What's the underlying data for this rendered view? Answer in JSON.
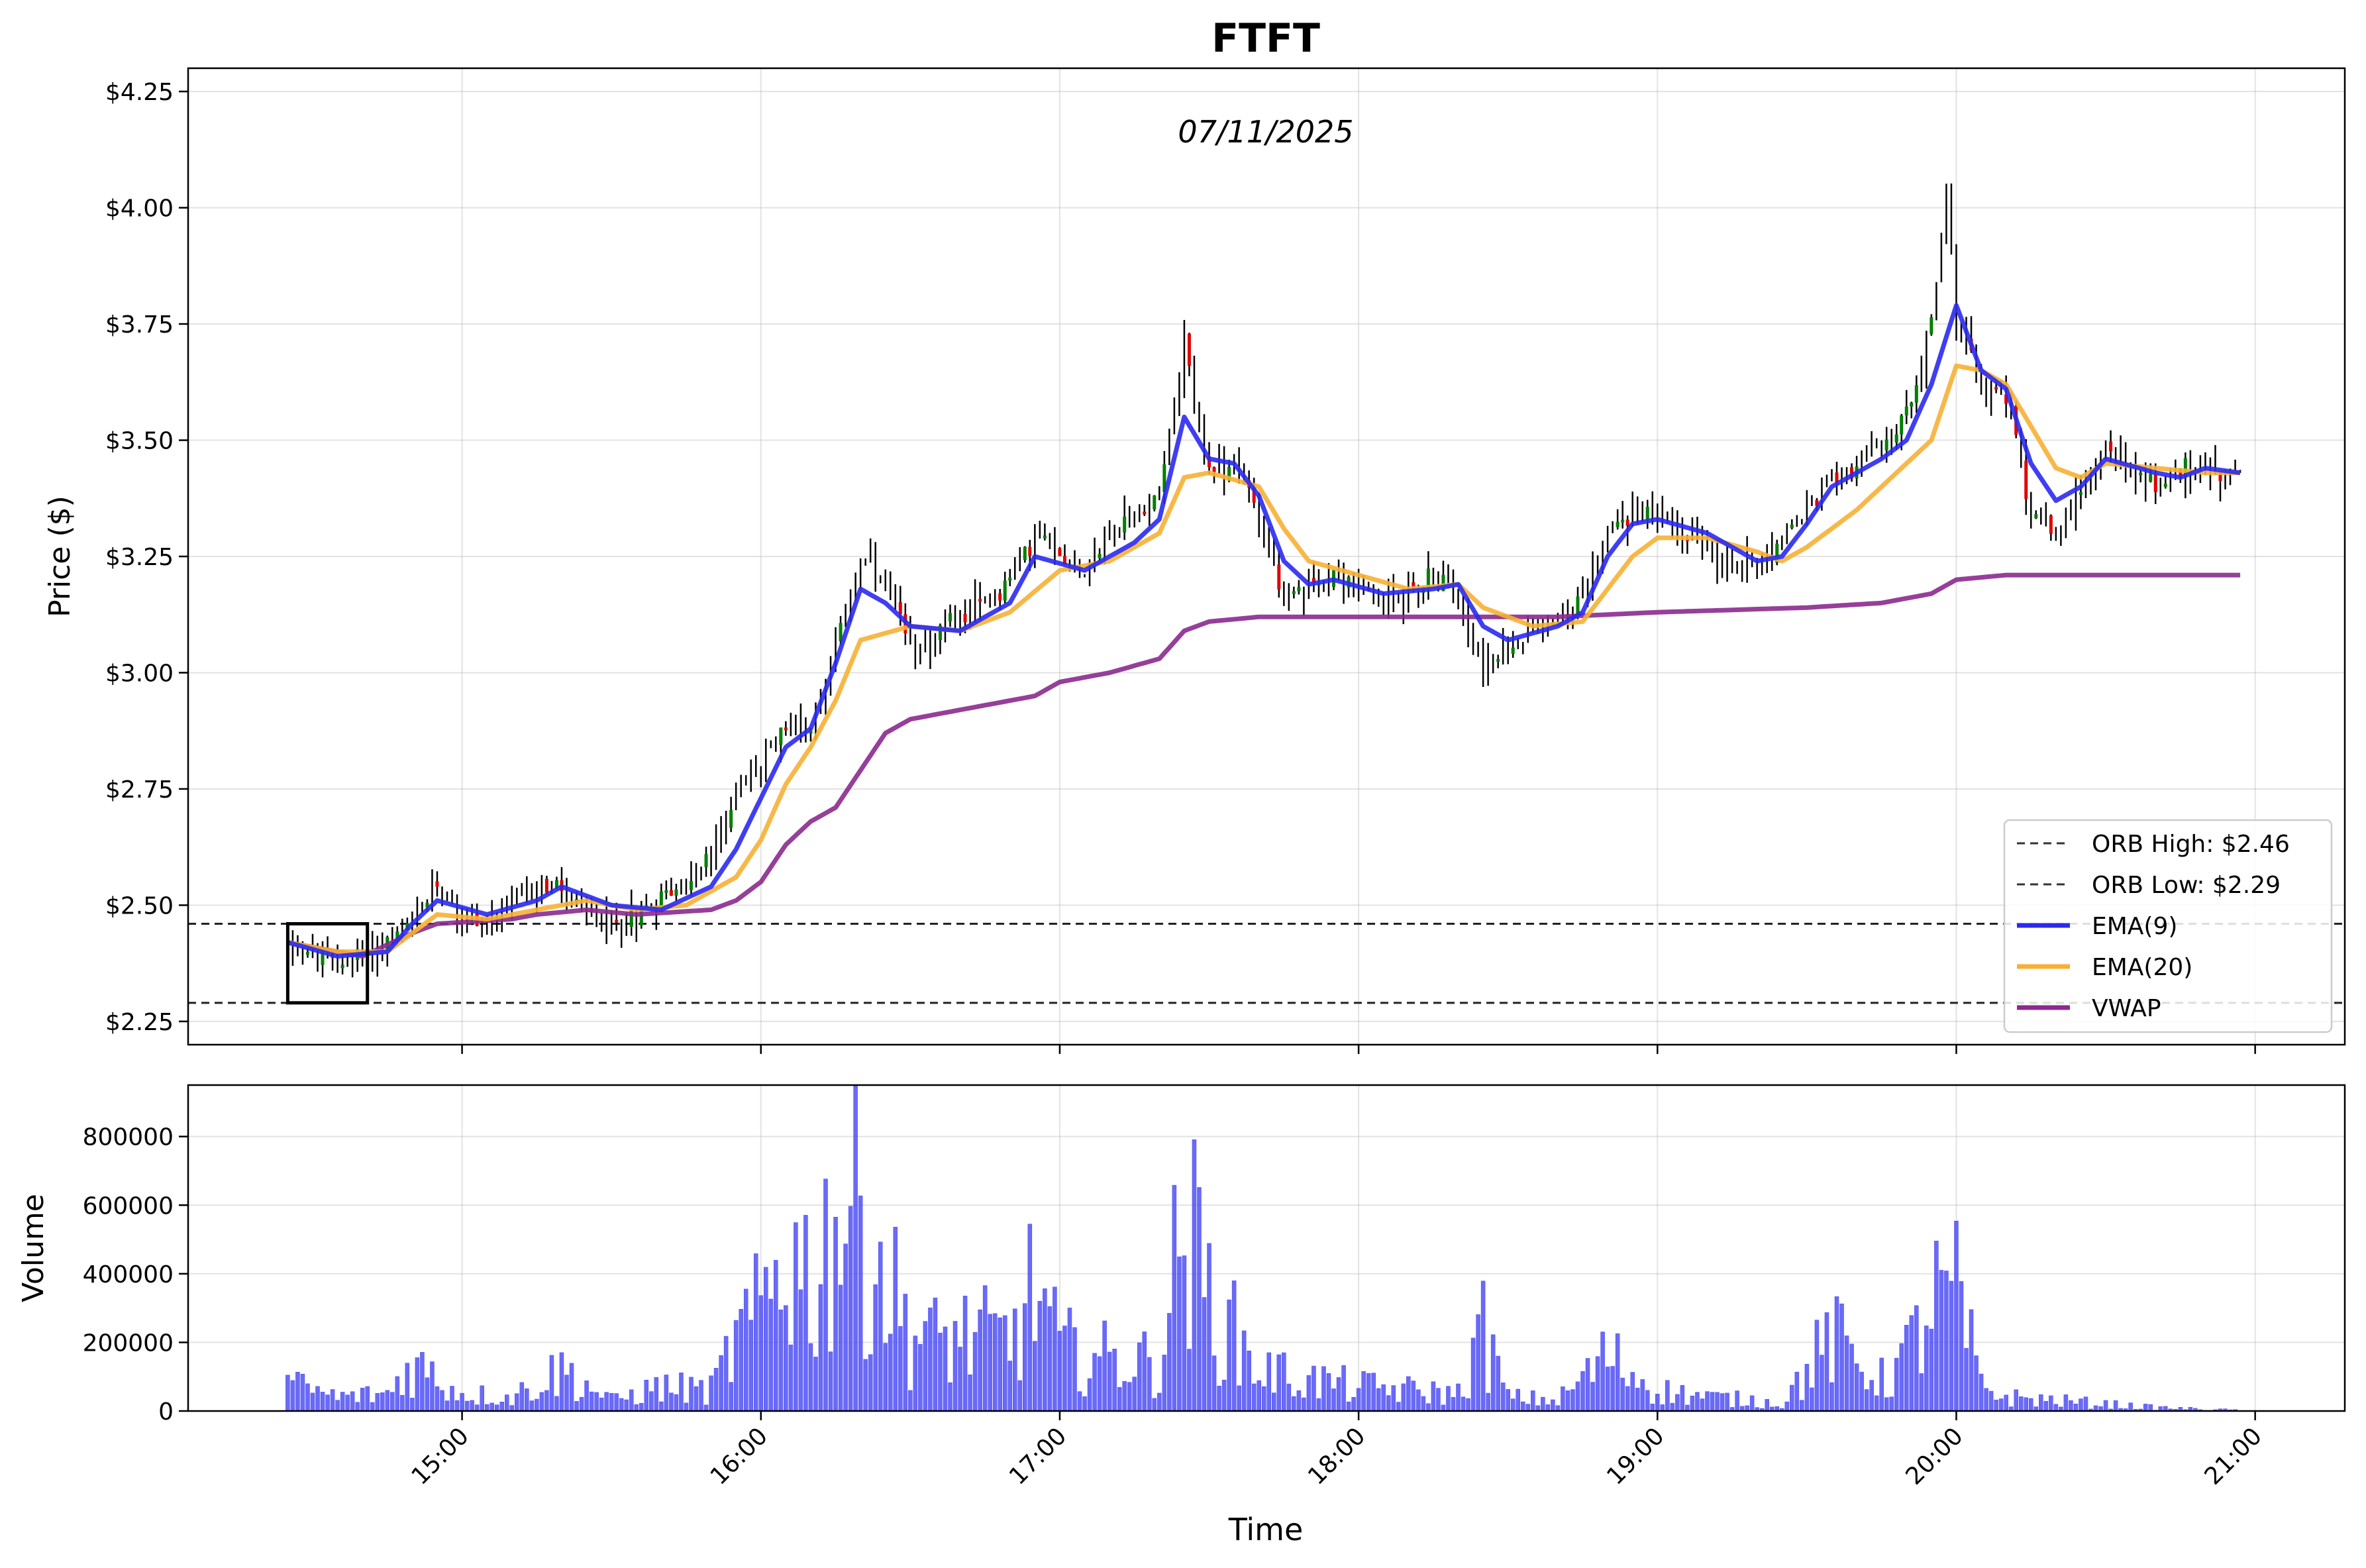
{
  "chart_data": [
    {
      "type": "candlestick",
      "title": "FTFT",
      "subtitle": "07/11/2025",
      "xlabel": "",
      "ylabel": "Price ($)",
      "ylim": [
        2.2,
        4.3
      ],
      "xlim": [
        "14:05",
        "21:18"
      ],
      "yticks": [
        2.25,
        2.5,
        2.75,
        3.0,
        3.25,
        3.5,
        3.75,
        4.0,
        4.25
      ],
      "ytick_labels": [
        "$2.25",
        "$2.50",
        "$2.75",
        "$3.00",
        "$3.25",
        "$3.50",
        "$3.75",
        "$4.00",
        "$4.25"
      ],
      "grid": true,
      "legend_position": "lower-right",
      "orb_high": 2.46,
      "orb_low": 2.29,
      "orb_box": {
        "start": "14:25",
        "end": "14:41",
        "low": 2.29,
        "high": 2.46
      },
      "legend": [
        {
          "label": "ORB High: $2.46",
          "style": "dashed",
          "color": "#333333"
        },
        {
          "label": "ORB Low: $2.29",
          "style": "dashed",
          "color": "#333333"
        },
        {
          "label": "EMA(9)",
          "style": "solid",
          "color": "#2a2aef"
        },
        {
          "label": "EMA(20)",
          "style": "solid",
          "color": "#f7b034"
        },
        {
          "label": "VWAP",
          "style": "solid",
          "color": "#8b2a8f"
        }
      ],
      "price_keypoints": [
        [
          "14:25",
          2.42
        ],
        [
          "14:35",
          2.37
        ],
        [
          "14:41",
          2.4
        ],
        [
          "14:50",
          2.45
        ],
        [
          "14:55",
          2.55
        ],
        [
          "15:00",
          2.48
        ],
        [
          "15:05",
          2.46
        ],
        [
          "15:10",
          2.5
        ],
        [
          "15:15",
          2.55
        ],
        [
          "15:20",
          2.53
        ],
        [
          "15:25",
          2.48
        ],
        [
          "15:30",
          2.46
        ],
        [
          "15:35",
          2.48
        ],
        [
          "15:40",
          2.52
        ],
        [
          "15:45",
          2.55
        ],
        [
          "15:50",
          2.6
        ],
        [
          "15:55",
          2.75
        ],
        [
          "16:00",
          2.8
        ],
        [
          "16:05",
          2.9
        ],
        [
          "16:10",
          2.88
        ],
        [
          "16:15",
          3.05
        ],
        [
          "16:20",
          3.25
        ],
        [
          "16:25",
          3.18
        ],
        [
          "16:30",
          3.05
        ],
        [
          "16:35",
          3.08
        ],
        [
          "16:40",
          3.12
        ],
        [
          "16:45",
          3.15
        ],
        [
          "16:50",
          3.2
        ],
        [
          "16:55",
          3.3
        ],
        [
          "17:00",
          3.25
        ],
        [
          "17:05",
          3.22
        ],
        [
          "17:10",
          3.3
        ],
        [
          "17:15",
          3.33
        ],
        [
          "17:20",
          3.4
        ],
        [
          "17:25",
          3.7
        ],
        [
          "17:30",
          3.42
        ],
        [
          "17:35",
          3.45
        ],
        [
          "17:40",
          3.35
        ],
        [
          "17:45",
          3.15
        ],
        [
          "17:50",
          3.18
        ],
        [
          "17:55",
          3.22
        ],
        [
          "18:00",
          3.18
        ],
        [
          "18:05",
          3.15
        ],
        [
          "18:10",
          3.18
        ],
        [
          "18:15",
          3.2
        ],
        [
          "18:20",
          3.18
        ],
        [
          "18:25",
          3.0
        ],
        [
          "18:30",
          3.05
        ],
        [
          "18:35",
          3.1
        ],
        [
          "18:40",
          3.12
        ],
        [
          "18:45",
          3.15
        ],
        [
          "18:50",
          3.3
        ],
        [
          "18:55",
          3.35
        ],
        [
          "19:00",
          3.33
        ],
        [
          "19:05",
          3.3
        ],
        [
          "19:10",
          3.28
        ],
        [
          "19:15",
          3.22
        ],
        [
          "19:20",
          3.25
        ],
        [
          "19:25",
          3.28
        ],
        [
          "19:30",
          3.35
        ],
        [
          "19:35",
          3.42
        ],
        [
          "19:40",
          3.45
        ],
        [
          "19:45",
          3.48
        ],
        [
          "19:50",
          3.55
        ],
        [
          "19:55",
          3.75
        ],
        [
          "19:58",
          4.05
        ],
        [
          "20:00",
          3.75
        ],
        [
          "20:05",
          3.62
        ],
        [
          "20:10",
          3.6
        ],
        [
          "20:15",
          3.35
        ],
        [
          "20:20",
          3.3
        ],
        [
          "20:25",
          3.4
        ],
        [
          "20:30",
          3.48
        ],
        [
          "20:35",
          3.45
        ],
        [
          "20:40",
          3.4
        ],
        [
          "20:45",
          3.43
        ],
        [
          "20:50",
          3.45
        ],
        [
          "20:55",
          3.43
        ],
        [
          "20:57",
          3.41
        ]
      ],
      "ema9_keypoints": [
        [
          "14:25",
          2.42
        ],
        [
          "14:35",
          2.39
        ],
        [
          "14:45",
          2.4
        ],
        [
          "14:50",
          2.46
        ],
        [
          "14:55",
          2.51
        ],
        [
          "15:05",
          2.48
        ],
        [
          "15:15",
          2.51
        ],
        [
          "15:20",
          2.54
        ],
        [
          "15:30",
          2.5
        ],
        [
          "15:40",
          2.49
        ],
        [
          "15:50",
          2.54
        ],
        [
          "15:55",
          2.62
        ],
        [
          "16:05",
          2.84
        ],
        [
          "16:10",
          2.88
        ],
        [
          "16:15",
          3.02
        ],
        [
          "16:20",
          3.18
        ],
        [
          "16:25",
          3.15
        ],
        [
          "16:30",
          3.1
        ],
        [
          "16:40",
          3.09
        ],
        [
          "16:50",
          3.15
        ],
        [
          "16:55",
          3.25
        ],
        [
          "17:05",
          3.22
        ],
        [
          "17:15",
          3.28
        ],
        [
          "17:20",
          3.33
        ],
        [
          "17:25",
          3.55
        ],
        [
          "17:30",
          3.46
        ],
        [
          "17:35",
          3.45
        ],
        [
          "17:40",
          3.38
        ],
        [
          "17:45",
          3.24
        ],
        [
          "17:50",
          3.19
        ],
        [
          "17:55",
          3.2
        ],
        [
          "18:05",
          3.17
        ],
        [
          "18:15",
          3.18
        ],
        [
          "18:20",
          3.19
        ],
        [
          "18:25",
          3.1
        ],
        [
          "18:30",
          3.07
        ],
        [
          "18:40",
          3.1
        ],
        [
          "18:45",
          3.13
        ],
        [
          "18:50",
          3.25
        ],
        [
          "18:55",
          3.32
        ],
        [
          "19:00",
          3.33
        ],
        [
          "19:10",
          3.3
        ],
        [
          "19:20",
          3.24
        ],
        [
          "19:25",
          3.25
        ],
        [
          "19:30",
          3.32
        ],
        [
          "19:35",
          3.4
        ],
        [
          "19:40",
          3.43
        ],
        [
          "19:45",
          3.46
        ],
        [
          "19:50",
          3.5
        ],
        [
          "19:55",
          3.62
        ],
        [
          "20:00",
          3.79
        ],
        [
          "20:05",
          3.65
        ],
        [
          "20:10",
          3.61
        ],
        [
          "20:15",
          3.45
        ],
        [
          "20:20",
          3.37
        ],
        [
          "20:25",
          3.4
        ],
        [
          "20:30",
          3.46
        ],
        [
          "20:40",
          3.43
        ],
        [
          "20:45",
          3.42
        ],
        [
          "20:50",
          3.44
        ],
        [
          "20:57",
          3.43
        ]
      ],
      "ema20_keypoints": [
        [
          "14:25",
          2.42
        ],
        [
          "14:35",
          2.4
        ],
        [
          "14:45",
          2.4
        ],
        [
          "14:50",
          2.44
        ],
        [
          "14:55",
          2.48
        ],
        [
          "15:05",
          2.47
        ],
        [
          "15:15",
          2.49
        ],
        [
          "15:25",
          2.51
        ],
        [
          "15:35",
          2.49
        ],
        [
          "15:45",
          2.5
        ],
        [
          "15:55",
          2.56
        ],
        [
          "16:00",
          2.64
        ],
        [
          "16:05",
          2.76
        ],
        [
          "16:10",
          2.84
        ],
        [
          "16:15",
          2.94
        ],
        [
          "16:20",
          3.07
        ],
        [
          "16:30",
          3.1
        ],
        [
          "16:40",
          3.09
        ],
        [
          "16:50",
          3.13
        ],
        [
          "17:00",
          3.22
        ],
        [
          "17:10",
          3.24
        ],
        [
          "17:20",
          3.3
        ],
        [
          "17:25",
          3.42
        ],
        [
          "17:30",
          3.43
        ],
        [
          "17:40",
          3.4
        ],
        [
          "17:45",
          3.31
        ],
        [
          "17:50",
          3.24
        ],
        [
          "18:00",
          3.21
        ],
        [
          "18:10",
          3.18
        ],
        [
          "18:20",
          3.19
        ],
        [
          "18:25",
          3.14
        ],
        [
          "18:35",
          3.1
        ],
        [
          "18:45",
          3.11
        ],
        [
          "18:50",
          3.18
        ],
        [
          "18:55",
          3.25
        ],
        [
          "19:00",
          3.29
        ],
        [
          "19:10",
          3.29
        ],
        [
          "19:20",
          3.26
        ],
        [
          "19:25",
          3.24
        ],
        [
          "19:30",
          3.27
        ],
        [
          "19:40",
          3.35
        ],
        [
          "19:45",
          3.4
        ],
        [
          "19:55",
          3.5
        ],
        [
          "20:00",
          3.66
        ],
        [
          "20:05",
          3.65
        ],
        [
          "20:10",
          3.62
        ],
        [
          "20:15",
          3.53
        ],
        [
          "20:20",
          3.44
        ],
        [
          "20:25",
          3.42
        ],
        [
          "20:30",
          3.45
        ],
        [
          "20:40",
          3.44
        ],
        [
          "20:50",
          3.43
        ],
        [
          "20:57",
          3.43
        ]
      ],
      "vwap_keypoints": [
        [
          "14:25",
          2.42
        ],
        [
          "14:40",
          2.39
        ],
        [
          "14:50",
          2.44
        ],
        [
          "14:55",
          2.46
        ],
        [
          "15:10",
          2.47
        ],
        [
          "15:15",
          2.48
        ],
        [
          "15:25",
          2.49
        ],
        [
          "15:35",
          2.48
        ],
        [
          "15:50",
          2.49
        ],
        [
          "15:55",
          2.51
        ],
        [
          "16:00",
          2.55
        ],
        [
          "16:05",
          2.63
        ],
        [
          "16:10",
          2.68
        ],
        [
          "16:15",
          2.71
        ],
        [
          "16:20",
          2.79
        ],
        [
          "16:25",
          2.87
        ],
        [
          "16:30",
          2.9
        ],
        [
          "16:45",
          2.93
        ],
        [
          "16:55",
          2.95
        ],
        [
          "17:00",
          2.98
        ],
        [
          "17:10",
          3.0
        ],
        [
          "17:20",
          3.03
        ],
        [
          "17:25",
          3.09
        ],
        [
          "17:30",
          3.11
        ],
        [
          "17:40",
          3.12
        ],
        [
          "18:00",
          3.12
        ],
        [
          "18:30",
          3.12
        ],
        [
          "18:40",
          3.12
        ],
        [
          "19:00",
          3.13
        ],
        [
          "19:30",
          3.14
        ],
        [
          "19:45",
          3.15
        ],
        [
          "19:55",
          3.17
        ],
        [
          "20:00",
          3.2
        ],
        [
          "20:10",
          3.21
        ],
        [
          "20:57",
          3.21
        ]
      ]
    },
    {
      "type": "bar",
      "xlabel": "Time",
      "ylabel": "Volume",
      "ylim": [
        0,
        950000
      ],
      "yticks": [
        0,
        200000,
        400000,
        600000,
        800000
      ],
      "ytick_labels": [
        "0",
        "200000",
        "400000",
        "600000",
        "800000"
      ],
      "xticks": [
        "15:00",
        "16:00",
        "17:00",
        "18:00",
        "19:00",
        "20:00",
        "21:00"
      ],
      "grid": true,
      "bar_color": "#4545f5",
      "volume_keypoints": [
        [
          "14:25",
          80000
        ],
        [
          "14:35",
          40000
        ],
        [
          "14:45",
          50000
        ],
        [
          "14:50",
          140000
        ],
        [
          "15:00",
          50000
        ],
        [
          "15:10",
          40000
        ],
        [
          "15:20",
          120000
        ],
        [
          "15:30",
          30000
        ],
        [
          "15:40",
          70000
        ],
        [
          "15:50",
          60000
        ],
        [
          "15:55",
          200000
        ],
        [
          "16:00",
          280000
        ],
        [
          "16:05",
          480000
        ],
        [
          "16:10",
          380000
        ],
        [
          "16:15",
          560000
        ],
        [
          "16:20",
          600000
        ],
        [
          "16:25",
          380000
        ],
        [
          "16:30",
          240000
        ],
        [
          "16:35",
          200000
        ],
        [
          "16:40",
          220000
        ],
        [
          "16:50",
          200000
        ],
        [
          "16:55",
          360000
        ],
        [
          "17:00",
          180000
        ],
        [
          "17:10",
          150000
        ],
        [
          "17:20",
          140000
        ],
        [
          "17:25",
          560000
        ],
        [
          "17:30",
          330000
        ],
        [
          "17:35",
          220000
        ],
        [
          "17:40",
          120000
        ],
        [
          "17:50",
          90000
        ],
        [
          "18:00",
          70000
        ],
        [
          "18:10",
          60000
        ],
        [
          "18:20",
          50000
        ],
        [
          "18:25",
          230000
        ],
        [
          "18:30",
          40000
        ],
        [
          "18:40",
          30000
        ],
        [
          "18:50",
          160000
        ],
        [
          "19:00",
          60000
        ],
        [
          "19:10",
          40000
        ],
        [
          "19:20",
          30000
        ],
        [
          "19:25",
          20000
        ],
        [
          "19:30",
          120000
        ],
        [
          "19:35",
          210000
        ],
        [
          "19:40",
          150000
        ],
        [
          "19:45",
          90000
        ],
        [
          "19:50",
          160000
        ],
        [
          "19:55",
          310000
        ],
        [
          "20:00",
          330000
        ],
        [
          "20:05",
          70000
        ],
        [
          "20:10",
          40000
        ],
        [
          "20:20",
          30000
        ],
        [
          "20:30",
          20000
        ],
        [
          "20:40",
          10000
        ],
        [
          "20:50",
          5000
        ],
        [
          "20:57",
          3000
        ]
      ]
    }
  ]
}
